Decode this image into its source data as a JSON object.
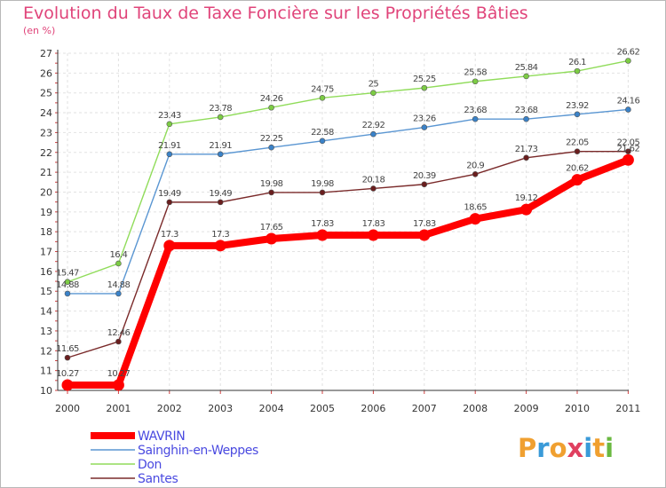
{
  "chart_data": {
    "type": "line",
    "title": "Evolution du Taux de Taxe Foncière sur les Propriétés Bâties",
    "ylabel": "(en %)",
    "xlabel": "",
    "categories": [
      "2000",
      "2001",
      "2002",
      "2003",
      "2004",
      "2005",
      "2006",
      "2007",
      "2008",
      "2009",
      "2010",
      "2011"
    ],
    "ylim": [
      10,
      27
    ],
    "yticks": [
      10,
      11,
      12,
      13,
      14,
      15,
      16,
      17,
      18,
      19,
      20,
      21,
      22,
      23,
      24,
      25,
      26,
      27
    ],
    "grid": true,
    "legend_position": "bottom-left",
    "series": [
      {
        "name": "Don",
        "color": "#90dc5a",
        "marker": "#7ccc44",
        "values": [
          15.47,
          16.4,
          23.43,
          23.78,
          24.26,
          24.75,
          25,
          25.25,
          25.58,
          25.84,
          26.1,
          26.62
        ],
        "labels": [
          "15.47",
          "16.4",
          "23.43",
          "23.78",
          "24.26",
          "24.75",
          "25",
          "25.25",
          "25.58",
          "25.84",
          "26.1",
          "26.62"
        ]
      },
      {
        "name": "Sainghin-en-Weppes",
        "color": "#5a96d2",
        "marker": "#3a82c8",
        "values": [
          14.88,
          14.88,
          21.91,
          21.91,
          22.25,
          22.58,
          22.92,
          23.26,
          23.68,
          23.68,
          23.92,
          24.16
        ],
        "labels": [
          "14.88",
          "14.88",
          "21.91",
          "21.91",
          "22.25",
          "22.58",
          "22.92",
          "23.26",
          "23.68",
          "23.68",
          "23.92",
          "24.16"
        ]
      },
      {
        "name": "Santes",
        "color": "#7a2a2a",
        "marker": "#6a1e1e",
        "values": [
          11.65,
          12.46,
          19.49,
          19.49,
          19.98,
          19.98,
          20.18,
          20.39,
          20.9,
          21.73,
          22.05,
          22.05
        ],
        "labels": [
          "11.65",
          "12.46",
          "19.49",
          "19.49",
          "19.98",
          "19.98",
          "20.18",
          "20.39",
          "20.9",
          "21.73",
          "22.05",
          "22.05"
        ]
      },
      {
        "name": "WAVRIN",
        "color": "#ff0000",
        "marker": "#ff0000",
        "values": [
          10.27,
          10.27,
          17.3,
          17.3,
          17.65,
          17.83,
          17.83,
          17.83,
          18.65,
          19.12,
          20.62,
          21.62
        ],
        "labels": [
          "10.27",
          "10.27",
          "17.3",
          "17.3",
          "17.65",
          "17.83",
          "17.83",
          "17.83",
          "18.65",
          "19.12",
          "20.62",
          "21.62"
        ]
      }
    ],
    "legend": [
      "WAVRIN",
      "Sainghin-en-Weppes",
      "Don",
      "Santes"
    ]
  },
  "logo": {
    "letters": [
      "P",
      "r",
      "o",
      "x",
      "i",
      "t",
      "i"
    ],
    "colors": [
      "#f0a030",
      "#3a9ad8",
      "#f0a030",
      "#e04060",
      "#3a9ad8",
      "#f0a030",
      "#6ab840"
    ]
  }
}
